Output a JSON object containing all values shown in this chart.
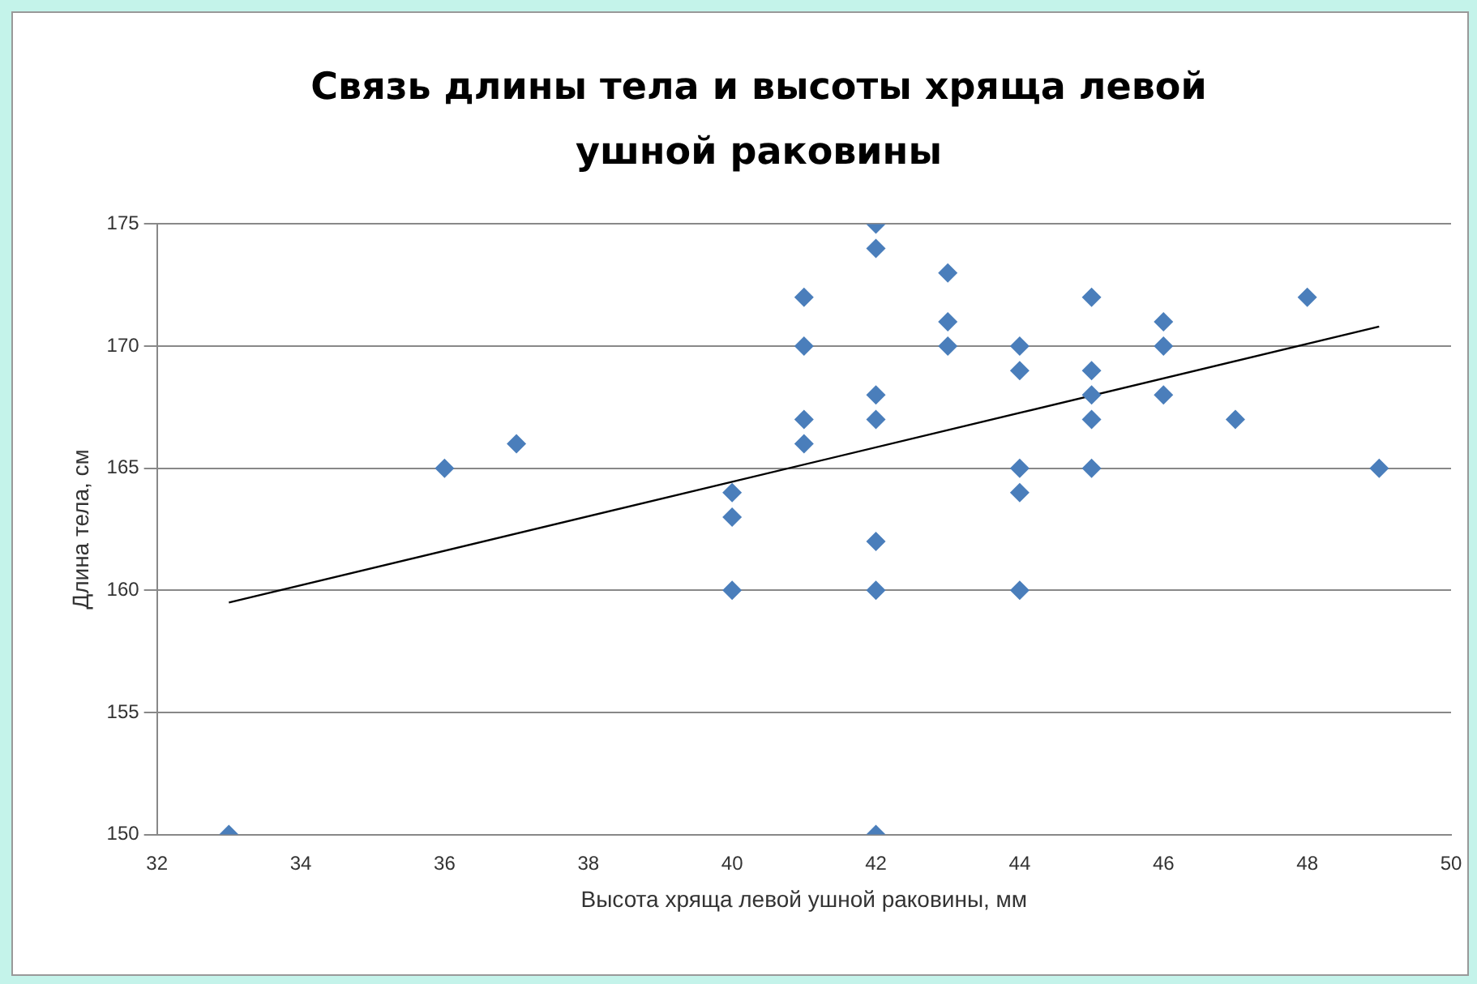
{
  "chart_data": {
    "type": "scatter",
    "title": "Связь длины тела и  высоты хряща левой ушной раковины",
    "xlabel": "Высота хряща левой ушной раковины, мм",
    "ylabel": "Длина тела, см",
    "xlim": [
      32,
      50
    ],
    "xticks": [
      32,
      34,
      36,
      38,
      40,
      42,
      44,
      46,
      48,
      50
    ],
    "ylim": [
      150,
      175
    ],
    "yticks": [
      150,
      155,
      160,
      165,
      170,
      175
    ],
    "grid": "y",
    "legend": false,
    "marker": "diamond",
    "series": [
      {
        "color": "#4a7ebb",
        "x": [
          33,
          36,
          37,
          40,
          40,
          40,
          41,
          41,
          41,
          41,
          42,
          42,
          42,
          42,
          42,
          42,
          42,
          43,
          43,
          43,
          44,
          44,
          44,
          44,
          44,
          45,
          45,
          45,
          45,
          45,
          46,
          46,
          46,
          47,
          48,
          49
        ],
        "values": [
          150,
          165,
          166,
          164,
          163,
          160,
          172,
          170,
          167,
          166,
          175,
          174,
          168,
          167,
          162,
          160,
          150,
          173,
          171,
          170,
          170,
          169,
          165,
          164,
          160,
          172,
          169,
          168,
          167,
          165,
          171,
          170,
          168,
          167,
          172,
          165
        ]
      },
      {
        "type": "line",
        "marker": "none",
        "color": "#000000",
        "x": [
          33,
          49
        ],
        "values": [
          159.5,
          170.8
        ]
      }
    ]
  }
}
